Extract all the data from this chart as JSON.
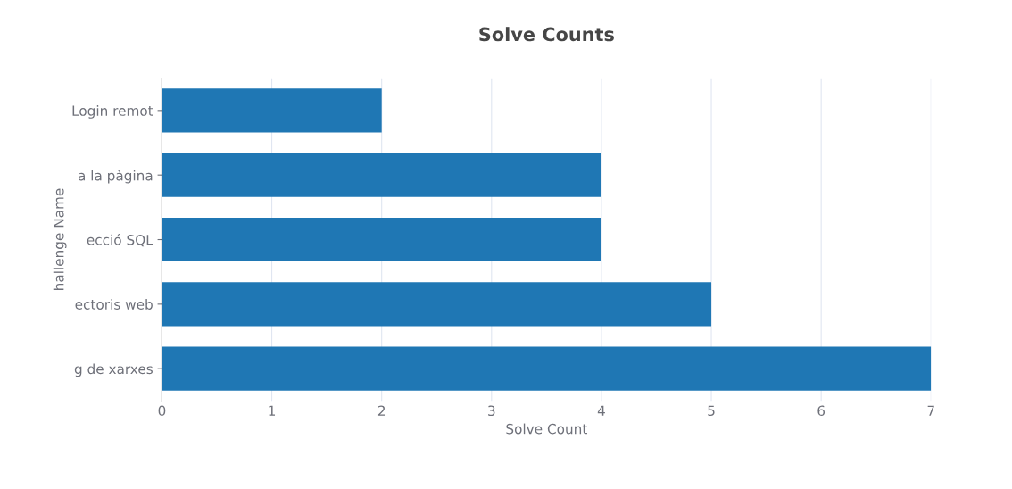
{
  "chart_data": {
    "type": "bar",
    "orientation": "horizontal",
    "title": "Solve Counts",
    "xlabel": "Solve Count",
    "ylabel": "hallenge Name",
    "categories": [
      "Login remot",
      "a la pàgina",
      "ecció SQL",
      "ectoris web",
      "g de xarxes"
    ],
    "values": [
      2,
      4,
      4,
      5,
      7
    ],
    "color": "#1f77b4",
    "xlim": [
      0,
      7
    ],
    "xticks": [
      0,
      1,
      2,
      3,
      4,
      5,
      6,
      7
    ],
    "grid": "x",
    "legend": false
  }
}
